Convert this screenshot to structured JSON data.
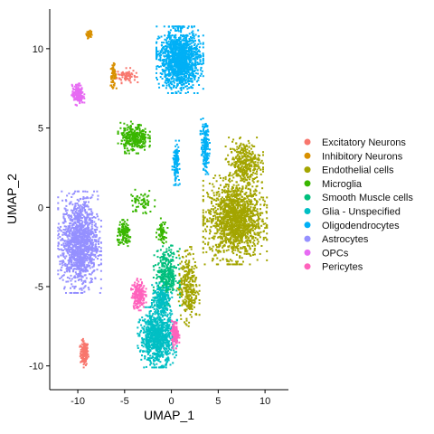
{
  "chart_data": {
    "type": "scatter",
    "title": "",
    "xlabel": "UMAP_1",
    "ylabel": "UMAP_2",
    "xlim": [
      -13,
      12.5
    ],
    "ylim": [
      -11.5,
      12.5
    ],
    "x_ticks": [
      -10,
      -5,
      0,
      5,
      10
    ],
    "y_ticks": [
      -10,
      -5,
      0,
      5,
      10
    ],
    "x_tick_labels": [
      "-10",
      "-5",
      "0",
      "5",
      "10"
    ],
    "y_tick_labels": [
      "-10",
      "-5",
      "0",
      "5",
      "10"
    ],
    "grid": false,
    "legend_position": "right",
    "series": [
      {
        "name": "Excitatory Neurons",
        "color": "#F8766D",
        "clusters": [
          {
            "cx": -9.3,
            "cy": -9.2,
            "rx": 0.5,
            "ry": 0.9,
            "n": 150
          },
          {
            "cx": -4.8,
            "cy": 8.3,
            "rx": 1.2,
            "ry": 0.5,
            "n": 70
          }
        ]
      },
      {
        "name": "Inhibitory Neurons",
        "color": "#D89000",
        "clusters": [
          {
            "cx": -8.8,
            "cy": 10.9,
            "rx": 0.3,
            "ry": 0.25,
            "n": 50
          },
          {
            "cx": -6.2,
            "cy": 8.3,
            "rx": 0.35,
            "ry": 0.8,
            "n": 70
          }
        ]
      },
      {
        "name": "Endothelial cells",
        "color": "#A3A500",
        "clusters": [
          {
            "cx": 6.8,
            "cy": -0.8,
            "rx": 3.4,
            "ry": 2.8,
            "n": 1500
          },
          {
            "cx": 7.8,
            "cy": 2.8,
            "rx": 2.0,
            "ry": 1.6,
            "n": 350
          },
          {
            "cx": 1.8,
            "cy": -5.0,
            "rx": 1.2,
            "ry": 2.5,
            "n": 300
          }
        ]
      },
      {
        "name": "Microglia",
        "color": "#39B600",
        "clusters": [
          {
            "cx": -4.0,
            "cy": 4.4,
            "rx": 1.7,
            "ry": 1.0,
            "n": 300
          },
          {
            "cx": -5.0,
            "cy": -1.7,
            "rx": 0.9,
            "ry": 0.9,
            "n": 120
          },
          {
            "cx": -3.2,
            "cy": 0.3,
            "rx": 1.5,
            "ry": 0.9,
            "n": 60
          },
          {
            "cx": -1.0,
            "cy": -1.5,
            "rx": 0.6,
            "ry": 0.8,
            "n": 60
          }
        ]
      },
      {
        "name": "Smooth Muscle cells",
        "color": "#00BF7D",
        "clusters": [
          {
            "cx": -0.5,
            "cy": -4.3,
            "rx": 1.4,
            "ry": 1.9,
            "n": 350
          }
        ]
      },
      {
        "name": "Glia - Unspecified",
        "color": "#00BFC4",
        "clusters": [
          {
            "cx": -1.5,
            "cy": -8.2,
            "rx": 2.1,
            "ry": 1.9,
            "n": 900
          },
          {
            "cx": -1.0,
            "cy": -5.8,
            "rx": 1.2,
            "ry": 1.0,
            "n": 200
          }
        ]
      },
      {
        "name": "Oligodendrocytes",
        "color": "#00B0F6",
        "clusters": [
          {
            "cx": 0.9,
            "cy": 9.3,
            "rx": 2.5,
            "ry": 2.1,
            "n": 1400
          },
          {
            "cx": 0.5,
            "cy": 2.8,
            "rx": 0.4,
            "ry": 1.4,
            "n": 120
          },
          {
            "cx": 3.6,
            "cy": 3.8,
            "rx": 0.5,
            "ry": 1.8,
            "n": 160
          }
        ]
      },
      {
        "name": "Astrocytes",
        "color": "#9590FF",
        "clusters": [
          {
            "cx": -9.8,
            "cy": -2.2,
            "rx": 2.3,
            "ry": 3.2,
            "n": 1300
          }
        ]
      },
      {
        "name": "OPCs",
        "color": "#E76BF3",
        "clusters": [
          {
            "cx": -10.0,
            "cy": 7.1,
            "rx": 0.7,
            "ry": 0.7,
            "n": 180
          }
        ]
      },
      {
        "name": "Pericytes",
        "color": "#FF62BC",
        "clusters": [
          {
            "cx": -3.5,
            "cy": -5.5,
            "rx": 0.8,
            "ry": 1.0,
            "n": 200
          },
          {
            "cx": 0.4,
            "cy": -8.0,
            "rx": 0.45,
            "ry": 0.9,
            "n": 120
          }
        ]
      }
    ]
  }
}
